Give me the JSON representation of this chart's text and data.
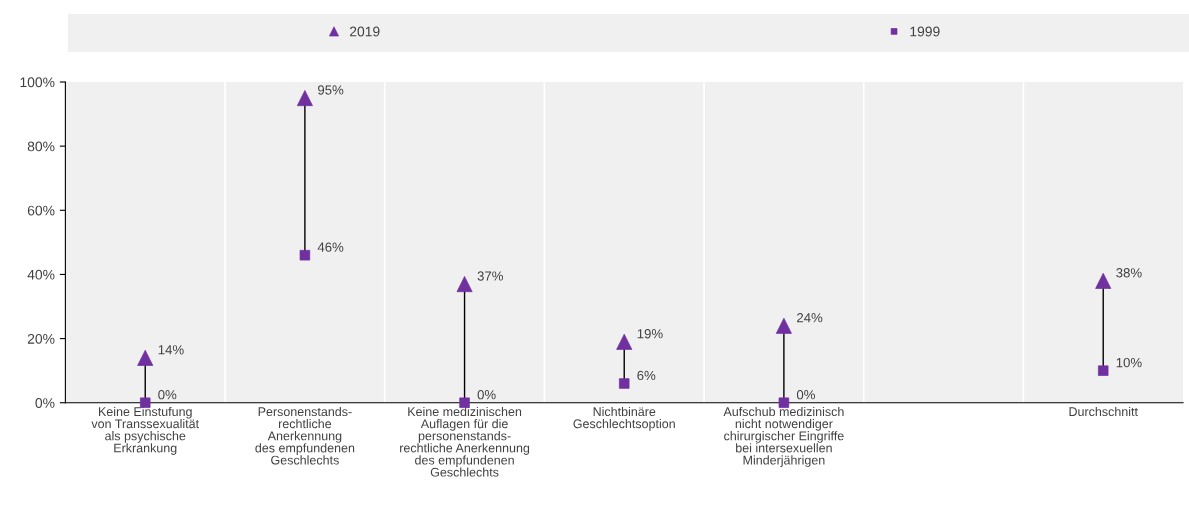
{
  "chart_data": {
    "type": "scatter",
    "categories": [
      "Keine Einstufung\nvon Transsexualität\nals psychische\nErkrankung",
      "Personenstands-\nrechtliche\nAnerkennung\ndes empfundenen\nGeschlechts",
      "Keine medizinischen\nAuflagen für die\npersonenstands-\nrechtliche Anerkennung\ndes empfundenen\nGeschlechts",
      "Nichtbinäre\nGeschlechtsoption",
      "Aufschub medizinisch\nnicht notwendiger\nchirurgischer Eingriffe\nbei intersexuellen\nMinderjährigen",
      null,
      "Durchschnitt"
    ],
    "series": [
      {
        "name": "2019",
        "color": "#7030a0",
        "marker": "triangle",
        "values": [
          14,
          95,
          37,
          19,
          24,
          null,
          38
        ],
        "value_labels": [
          "14%",
          "95%",
          "37%",
          "19%",
          "24%",
          null,
          "38%"
        ]
      },
      {
        "name": "1999",
        "color": "#7030a0",
        "marker": "square",
        "values": [
          0,
          46,
          0,
          6,
          0,
          null,
          10
        ],
        "value_labels": [
          "0%",
          "46%",
          "0%",
          "6%",
          "0%",
          null,
          "10%"
        ]
      }
    ],
    "ylim": [
      0,
      100
    ],
    "yticks": [
      {
        "value": 0,
        "label": "0%"
      },
      {
        "value": 20,
        "label": "20%"
      },
      {
        "value": 40,
        "label": "40%"
      },
      {
        "value": 60,
        "label": "60%"
      },
      {
        "value": 80,
        "label": "80%"
      },
      {
        "value": 100,
        "label": "100%"
      }
    ],
    "grid": "x",
    "legend": "top"
  }
}
